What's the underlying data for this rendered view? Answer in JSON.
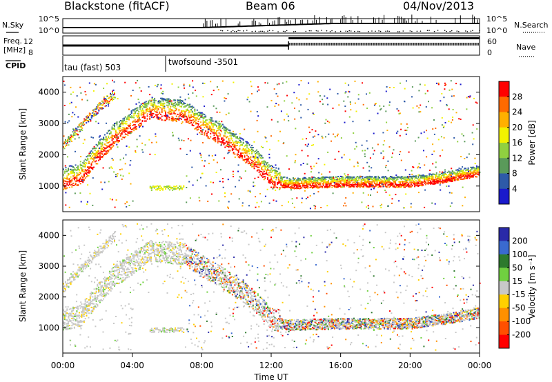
{
  "header": {
    "station": "Blackstone (fitACF)",
    "beam": "Beam 06",
    "date": "04/Nov/2013"
  },
  "noise_panel": {
    "left_label": "N.Sky",
    "right_label": "N.Search",
    "left_ticks": [
      "10^5",
      "10^0"
    ],
    "right_ticks": [
      "10^5",
      "10^0"
    ]
  },
  "freq_panel": {
    "left_label_1": "Freq.",
    "left_label_2": "[MHz]",
    "left_ticks": [
      "12",
      "8"
    ],
    "right_label": "Nave",
    "right_ticks": [
      "60",
      "0"
    ]
  },
  "cpid_panel": {
    "label": "CPID",
    "programs": [
      {
        "name": "tau (fast) 503"
      },
      {
        "name": "twofsound -3501"
      }
    ]
  },
  "axes": {
    "ylabel": "Slant Range [km]",
    "yticks": [
      "4000",
      "3000",
      "2000",
      "1000"
    ],
    "xticks": [
      "00:00",
      "04:00",
      "08:00",
      "12:00",
      "16:00",
      "20:00",
      "00:00"
    ],
    "xlabel": "Time UT"
  },
  "power_colorbar": {
    "label": "Power [dB]",
    "ticks": [
      "28",
      "24",
      "20",
      "16",
      "12",
      "8",
      "4"
    ],
    "colors": [
      "#ff0000",
      "#ff6a00",
      "#ffb000",
      "#f2f200",
      "#90d040",
      "#5a9a5a",
      "#2e5aa8",
      "#1a1acc"
    ]
  },
  "velocity_colorbar": {
    "label": "Velocity [m s⁻¹]",
    "ticks": [
      "200",
      "100",
      "50",
      "15",
      "-15",
      "-50",
      "-100",
      "-200"
    ],
    "colors": [
      "#2a2aa8",
      "#3a6ad0",
      "#2d7a2d",
      "#70d040",
      "#c8c8c8",
      "#ffd000",
      "#ff9000",
      "#ff5000",
      "#ff0000"
    ]
  },
  "chart_data": {
    "type": "heatmap",
    "xlabel": "Time UT",
    "ylabel": "Slant Range [km]",
    "x_range_hours": [
      0,
      24
    ],
    "y_range_km": [
      180,
      4500
    ],
    "frequency_mhz": [
      {
        "t_start": 0,
        "t_end": 13,
        "value": 10
      },
      {
        "t_start": 13,
        "t_end": 24,
        "value": 11.5
      }
    ],
    "cpid": [
      {
        "t_start": 0,
        "t_end": 6,
        "program": "tau (fast) 503"
      },
      {
        "t_start": 6,
        "t_end": 24,
        "program": "twofsound -3501"
      }
    ],
    "scatter_regions": [
      {
        "name": "main",
        "points": [
          [
            0,
            1050
          ],
          [
            1,
            1200
          ],
          [
            2,
            1900
          ],
          [
            3,
            2500
          ],
          [
            4,
            2900
          ],
          [
            5,
            3300
          ],
          [
            7,
            3200
          ],
          [
            8,
            2800
          ],
          [
            9,
            2500
          ],
          [
            10,
            2100
          ],
          [
            11,
            1700
          ],
          [
            12,
            1100
          ],
          [
            13,
            1000
          ],
          [
            16,
            1050
          ],
          [
            18,
            1050
          ],
          [
            20,
            1050
          ],
          [
            22,
            1200
          ],
          [
            24,
            1400
          ]
        ]
      },
      {
        "name": "upper",
        "points": [
          [
            0,
            2300
          ],
          [
            1,
            2900
          ],
          [
            2,
            3500
          ],
          [
            3,
            4000
          ]
        ]
      },
      {
        "name": "patch",
        "points": [
          [
            5,
            1000
          ],
          [
            6,
            980
          ],
          [
            7,
            1020
          ]
        ]
      }
    ]
  }
}
